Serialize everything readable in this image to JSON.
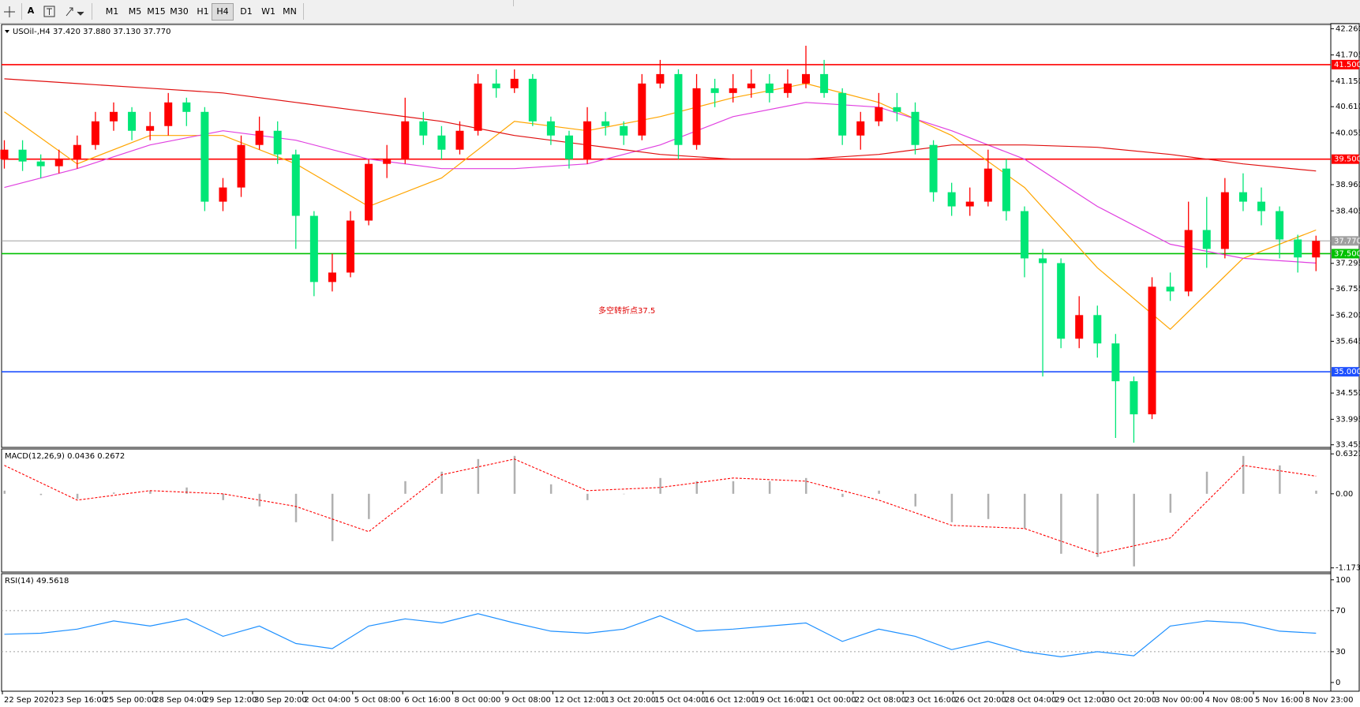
{
  "toolbar": {
    "text_tool": "A",
    "timeframes": [
      "M1",
      "M5",
      "M15",
      "M30",
      "H1",
      "H4",
      "D1",
      "W1",
      "MN"
    ],
    "active": "H4"
  },
  "time_labels": [
    "22 Sep 2020",
    "23 Sep 16:00",
    "25 Sep 00:00",
    "28 Sep 04:00",
    "29 Sep 12:00",
    "30 Sep 20:00",
    "2 Oct 04:00",
    "5 Oct 08:00",
    "6 Oct 16:00",
    "8 Oct 00:00",
    "9 Oct 08:00",
    "12 Oct 12:00",
    "13 Oct 20:00",
    "15 Oct 04:00",
    "16 Oct 12:00",
    "19 Oct 16:00",
    "21 Oct 00:00",
    "22 Oct 08:00",
    "23 Oct 16:00",
    "26 Oct 20:00",
    "28 Oct 04:00",
    "29 Oct 12:00",
    "30 Oct 20:00",
    "3 Nov 00:00",
    "4 Nov 08:00",
    "5 Nov 16:00",
    "8 Nov 23:00"
  ],
  "chart_data": [
    {
      "type": "candlestick",
      "title": "USOil-,H4  37.420 37.880 37.130 37.770",
      "annotation": "多空转折点37.5",
      "annotation_color": "#e00000",
      "up_color": "#ff0000",
      "down_color": "#00e676",
      "open": [
        39.5,
        39.7,
        39.45,
        39.35,
        39.5,
        39.8,
        40.3,
        40.5,
        40.1,
        40.2,
        40.7,
        40.5,
        38.6,
        38.9,
        39.8,
        40.1,
        39.6,
        38.3,
        36.9,
        37.1,
        38.2,
        39.4,
        39.5,
        40.3,
        40.0,
        39.7,
        40.1,
        41.1,
        41.0,
        41.2,
        40.3,
        40.0,
        39.5,
        40.3,
        40.2,
        40.0,
        41.1,
        41.3,
        39.8,
        41.0,
        40.9,
        41.0,
        41.1,
        40.9,
        41.1,
        41.3,
        40.9,
        40.0,
        40.3,
        40.6,
        40.5,
        39.8,
        38.8,
        38.5,
        38.6,
        39.3,
        38.4,
        37.4,
        37.3,
        35.7,
        36.2,
        35.6,
        34.8,
        34.1,
        36.8,
        36.7,
        38.0,
        37.6,
        38.8,
        38.6,
        38.4,
        37.8,
        37.42
      ],
      "high": [
        39.9,
        39.9,
        39.6,
        39.7,
        40.0,
        40.5,
        40.7,
        40.6,
        40.5,
        40.9,
        40.8,
        40.6,
        39.1,
        40.0,
        40.4,
        40.3,
        39.7,
        38.4,
        37.5,
        38.4,
        39.5,
        39.8,
        40.8,
        40.5,
        40.2,
        40.3,
        41.3,
        41.4,
        41.4,
        41.3,
        40.4,
        40.1,
        40.6,
        40.5,
        40.3,
        41.3,
        41.6,
        41.4,
        41.3,
        41.2,
        41.3,
        41.4,
        41.3,
        41.4,
        41.9,
        41.6,
        41.0,
        40.5,
        40.9,
        40.9,
        40.7,
        39.9,
        39.0,
        38.9,
        39.7,
        39.5,
        38.5,
        37.6,
        37.4,
        36.6,
        36.4,
        35.8,
        34.9,
        37.0,
        37.1,
        38.6,
        38.7,
        39.1,
        39.2,
        38.9,
        38.5,
        37.9,
        37.88
      ],
      "low": [
        39.3,
        39.25,
        39.1,
        39.2,
        39.3,
        39.7,
        40.1,
        39.9,
        39.9,
        40.0,
        40.2,
        38.4,
        38.4,
        38.7,
        39.7,
        39.4,
        37.6,
        36.6,
        36.7,
        37.0,
        38.1,
        39.1,
        39.4,
        39.8,
        39.5,
        39.6,
        40.0,
        40.8,
        40.9,
        40.2,
        39.8,
        39.3,
        39.4,
        40.0,
        39.8,
        39.9,
        41.0,
        39.5,
        39.7,
        40.6,
        40.7,
        40.8,
        40.7,
        40.8,
        41.0,
        40.8,
        39.8,
        39.7,
        40.2,
        40.3,
        39.6,
        38.6,
        38.3,
        38.3,
        38.5,
        38.2,
        37.0,
        34.9,
        35.5,
        35.5,
        35.3,
        33.6,
        33.5,
        34.0,
        36.5,
        36.6,
        37.2,
        37.4,
        38.4,
        38.1,
        37.4,
        37.1,
        37.13
      ],
      "close": [
        39.7,
        39.45,
        39.35,
        39.5,
        39.8,
        40.3,
        40.5,
        40.1,
        40.2,
        40.7,
        40.5,
        38.6,
        38.9,
        39.8,
        40.1,
        39.6,
        38.3,
        36.9,
        37.1,
        38.2,
        39.4,
        39.5,
        40.3,
        40.0,
        39.7,
        40.1,
        41.1,
        41.0,
        41.2,
        40.3,
        40.0,
        39.5,
        40.3,
        40.2,
        40.0,
        41.1,
        41.3,
        39.8,
        41.0,
        40.9,
        41.0,
        41.1,
        40.9,
        41.1,
        41.3,
        40.9,
        40.0,
        40.3,
        40.6,
        40.5,
        39.8,
        38.8,
        38.5,
        38.6,
        39.3,
        38.4,
        37.4,
        37.3,
        35.7,
        36.2,
        35.6,
        34.8,
        34.1,
        36.8,
        36.7,
        38.0,
        37.6,
        38.8,
        38.6,
        38.4,
        37.8,
        37.42,
        37.77
      ],
      "lines": [
        {
          "color": "#ffa500",
          "values": [
            40.5,
            39.4,
            40.0,
            40.0,
            39.4,
            38.5,
            39.1,
            40.3,
            40.1,
            40.4,
            40.8,
            41.1,
            40.7,
            40.0,
            38.9,
            37.2,
            35.9,
            37.4,
            38.0
          ]
        },
        {
          "color": "#e040e0",
          "values": [
            38.9,
            39.3,
            39.8,
            40.1,
            39.9,
            39.5,
            39.3,
            39.3,
            39.4,
            39.8,
            40.4,
            40.7,
            40.6,
            40.1,
            39.5,
            38.5,
            37.7,
            37.4,
            37.3
          ]
        },
        {
          "color": "#e01010",
          "values": [
            41.2,
            41.1,
            41.0,
            40.9,
            40.7,
            40.5,
            40.3,
            40.0,
            39.8,
            39.6,
            39.5,
            39.5,
            39.6,
            39.8,
            39.8,
            39.75,
            39.6,
            39.4,
            39.25
          ]
        }
      ],
      "levels": [
        {
          "value": 41.5,
          "label": "41.500",
          "color": "#ff0000"
        },
        {
          "value": 39.5,
          "label": "39.500",
          "color": "#ff0000"
        },
        {
          "value": 37.5,
          "label": "37.500",
          "color": "#00c000"
        },
        {
          "value": 35.0,
          "label": "35.000",
          "color": "#1e50ff"
        },
        {
          "value": 37.77,
          "label": "37.770",
          "color": "#a0a0a0"
        }
      ],
      "ylim": [
        33.4,
        42.35
      ],
      "yticks": [
        {
          "value": 42.26,
          "label": "42.260"
        },
        41.705,
        {
          "value": 41.15,
          "label": "41.150"
        },
        {
          "value": 40.61,
          "label": "40.610"
        },
        40.055,
        {
          "value": 38.96,
          "label": "38.960"
        },
        38.405,
        37.295,
        36.755,
        {
          "value": 36.2,
          "label": "36.200"
        },
        35.645,
        {
          "value": 34.55,
          "label": "34.550"
        },
        33.995,
        33.455
      ]
    },
    {
      "type": "macd",
      "title": "MACD(12,26,9) 0.0436 0.2672",
      "hist_color": "#b0b0b0",
      "signal_color": "#ff0000",
      "histogram": [
        0.05,
        -0.02,
        -0.08,
        0.02,
        0.05,
        0.1,
        -0.1,
        -0.2,
        -0.45,
        -0.75,
        -0.4,
        0.2,
        0.35,
        0.55,
        0.6,
        0.15,
        -0.1,
        0.0,
        0.25,
        0.2,
        0.2,
        0.2,
        0.25,
        -0.05,
        0.05,
        -0.2,
        -0.45,
        -0.4,
        -0.55,
        -0.95,
        -1.0,
        -1.15,
        -0.3,
        0.35,
        0.6,
        0.45,
        0.05
      ],
      "signal": [
        0.45,
        -0.1,
        0.05,
        0.0,
        -0.2,
        -0.6,
        0.3,
        0.55,
        0.05,
        0.1,
        0.25,
        0.2,
        -0.1,
        -0.5,
        -0.55,
        -0.95,
        -0.7,
        0.45,
        0.28
      ],
      "ylim": [
        -1.24,
        0.71
      ],
      "yticks": [
        0.6327,
        {
          "value": 0,
          "label": "0.00"
        },
        -1.1736
      ]
    },
    {
      "type": "line",
      "title": "RSI(14) 49.5618",
      "color": "#1e90ff",
      "values": [
        47,
        48,
        52,
        60,
        55,
        62,
        45,
        55,
        38,
        33,
        55,
        62,
        58,
        67,
        58,
        50,
        48,
        52,
        65,
        50,
        52,
        55,
        58,
        40,
        52,
        45,
        32,
        40,
        30,
        25,
        30,
        26,
        55,
        60,
        58,
        50,
        48
      ],
      "levels": [
        70,
        30
      ],
      "ylim": [
        -8.5,
        106
      ],
      "yticks": [
        100,
        70,
        30,
        0
      ]
    }
  ]
}
